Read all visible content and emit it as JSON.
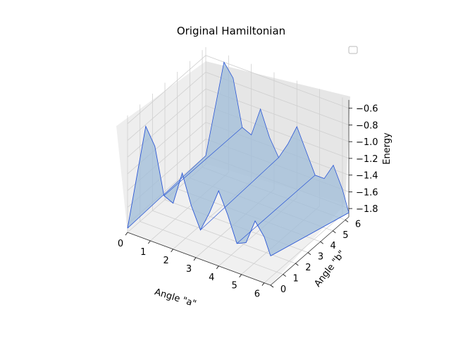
{
  "chart_data": {
    "type": "surface3d",
    "title": "Original Hamiltonian",
    "xlabel": "Angle \"a\"",
    "ylabel": "Angle \"b\"",
    "zlabel": "Energy",
    "xlim": [
      0,
      6.28
    ],
    "ylim": [
      0,
      6.28
    ],
    "zlim": [
      -1.9,
      -0.5
    ],
    "xticks": [
      "0",
      "1",
      "2",
      "3",
      "4",
      "5",
      "6"
    ],
    "yticks": [
      "0",
      "1",
      "2",
      "3",
      "4",
      "5",
      "6"
    ],
    "zticks": [
      "−1.8",
      "−1.6",
      "−1.4",
      "−1.2",
      "−1.0",
      "−0.8",
      "−0.6"
    ],
    "xtick_values": [
      0,
      1,
      2,
      3,
      4,
      5,
      6
    ],
    "ytick_values": [
      0,
      1,
      2,
      3,
      4,
      5,
      6
    ],
    "ztick_values": [
      -1.8,
      -1.6,
      -1.4,
      -1.2,
      -1.0,
      -0.8,
      -0.6
    ],
    "surface_curves": [
      {
        "name": "front",
        "y": 0.0,
        "points": [
          [
            0,
            -1.85
          ],
          [
            0.4,
            -1.2
          ],
          [
            0.8,
            -0.55
          ],
          [
            1.2,
            -0.75
          ],
          [
            1.6,
            -1.3
          ],
          [
            2.0,
            -1.35
          ],
          [
            2.4,
            -0.95
          ],
          [
            2.8,
            -1.3
          ],
          [
            3.2,
            -1.55
          ],
          [
            3.6,
            -1.3
          ],
          [
            4.0,
            -1.0
          ],
          [
            4.4,
            -1.25
          ],
          [
            4.8,
            -1.55
          ],
          [
            5.2,
            -1.5
          ],
          [
            5.6,
            -1.2
          ],
          [
            6.0,
            -1.35
          ],
          [
            6.28,
            -1.55
          ]
        ]
      },
      {
        "name": "back",
        "y": 6.28,
        "points": [
          [
            0,
            -1.8
          ],
          [
            0.4,
            -1.2
          ],
          [
            0.8,
            -0.6
          ],
          [
            1.2,
            -0.75
          ],
          [
            1.6,
            -1.3
          ],
          [
            2.0,
            -1.35
          ],
          [
            2.4,
            -1.0
          ],
          [
            2.8,
            -1.3
          ],
          [
            3.2,
            -1.5
          ],
          [
            3.6,
            -1.3
          ],
          [
            4.0,
            -1.05
          ],
          [
            4.4,
            -1.3
          ],
          [
            4.8,
            -1.55
          ],
          [
            5.2,
            -1.55
          ],
          [
            5.6,
            -1.35
          ],
          [
            6.0,
            -1.6
          ],
          [
            6.28,
            -1.85
          ]
        ]
      }
    ],
    "colors": {
      "surface_fill": "#9fbcd8",
      "surface_edge": "#2a56d6",
      "pane": "#eeeeee",
      "grid": "#cfcfcf"
    }
  }
}
